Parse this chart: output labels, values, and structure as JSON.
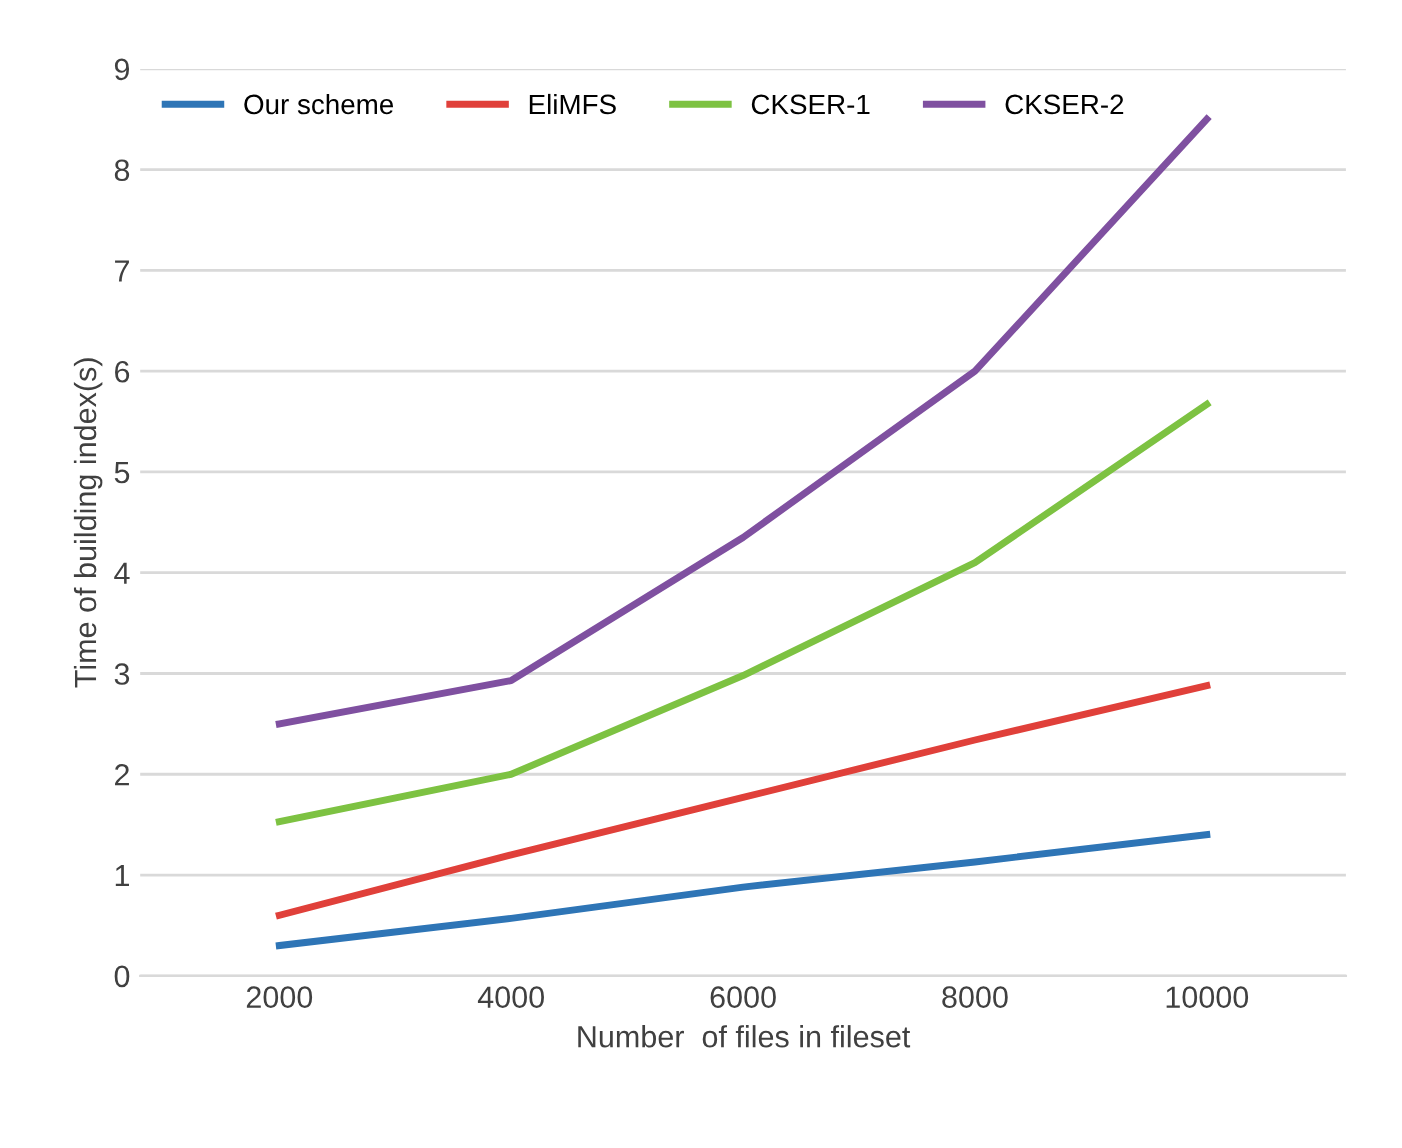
{
  "chart_data": {
    "type": "line",
    "xlabel": "Number  of files in fileset",
    "ylabel": "Time of building index(s)",
    "categories": [
      "2000",
      "4000",
      "6000",
      "8000",
      "10000"
    ],
    "series": [
      {
        "name": "Our scheme",
        "color": "#2e75b6",
        "values": [
          0.3,
          0.57,
          0.88,
          1.13,
          1.4
        ]
      },
      {
        "name": "EliMFS",
        "color": "#e0403a",
        "values": [
          0.6,
          1.2,
          1.77,
          2.34,
          2.88
        ]
      },
      {
        "name": "CKSER-1",
        "color": "#7dc242",
        "values": [
          1.53,
          2.0,
          2.98,
          4.1,
          5.67
        ]
      },
      {
        "name": "CKSER-2",
        "color": "#7f50a0",
        "values": [
          2.5,
          2.93,
          4.35,
          6.0,
          8.5
        ]
      }
    ],
    "ylim": [
      0,
      9
    ],
    "yticks": [
      0,
      1,
      2,
      3,
      4,
      5,
      6,
      7,
      8,
      9
    ],
    "grid": "y",
    "legend": "top left",
    "marker": "none",
    "line_style": "solid"
  }
}
